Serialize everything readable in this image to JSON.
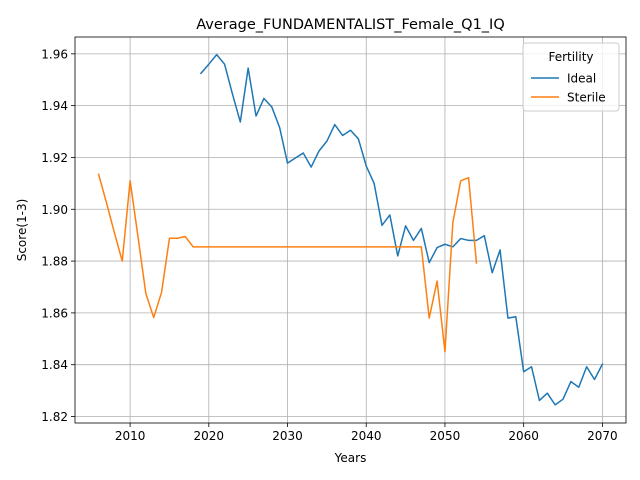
{
  "chart_data": {
    "type": "line",
    "title": "Average_FUNDAMENTALIST_Female_Q1_IQ",
    "xlabel": "Years",
    "ylabel": "Score(1-3)",
    "xlim": [
      2003,
      2073
    ],
    "ylim": [
      1.8175,
      1.9665
    ],
    "xticks": [
      2010,
      2020,
      2030,
      2040,
      2050,
      2060,
      2070
    ],
    "yticks": [
      1.82,
      1.84,
      1.86,
      1.88,
      1.9,
      1.92,
      1.94,
      1.96
    ],
    "ytick_labels": [
      "1.82",
      "1.84",
      "1.86",
      "1.88",
      "1.90",
      "1.92",
      "1.94",
      "1.96"
    ],
    "grid": true,
    "legend": {
      "title": "Fertility",
      "placement": "top-right"
    },
    "series": [
      {
        "name": "Ideal",
        "color": "#1f77b4",
        "x": [
          2019,
          2020,
          2021,
          2022,
          2023,
          2024,
          2025,
          2026,
          2027,
          2028,
          2029,
          2030,
          2031,
          2032,
          2033,
          2034,
          2035,
          2036,
          2037,
          2038,
          2039,
          2040,
          2041,
          2042,
          2043,
          2044,
          2045,
          2046,
          2047,
          2048,
          2049,
          2050,
          2051,
          2052,
          2053,
          2054,
          2055,
          2056,
          2057,
          2058,
          2059,
          2060,
          2061,
          2062,
          2063,
          2064,
          2065,
          2066,
          2067,
          2068,
          2069,
          2070
        ],
        "y": [
          1.9525,
          1.956,
          1.9597,
          1.956,
          1.9445,
          1.9337,
          1.9545,
          1.936,
          1.9428,
          1.9395,
          1.9315,
          1.9178,
          1.9198,
          1.9217,
          1.9163,
          1.9225,
          1.9263,
          1.9327,
          1.9285,
          1.9305,
          1.9272,
          1.9167,
          1.91,
          1.8938,
          1.8978,
          1.882,
          1.8936,
          1.888,
          1.8926,
          1.8794,
          1.8852,
          1.8865,
          1.8855,
          1.8887,
          1.888,
          1.888,
          1.8898,
          1.8755,
          1.8843,
          1.858,
          1.8585,
          1.8373,
          1.8392,
          1.8262,
          1.829,
          1.8245,
          1.8267,
          1.8335,
          1.8313,
          1.8392,
          1.8343,
          1.8402
        ]
      },
      {
        "name": "Sterile",
        "color": "#ff7f0e",
        "x": [
          2006,
          2007,
          2008,
          2009,
          2010,
          2011,
          2012,
          2013,
          2014,
          2015,
          2016,
          2017,
          2018,
          2019,
          2020,
          2021,
          2022,
          2023,
          2024,
          2025,
          2026,
          2027,
          2028,
          2029,
          2030,
          2031,
          2032,
          2033,
          2034,
          2035,
          2036,
          2037,
          2038,
          2039,
          2040,
          2041,
          2042,
          2043,
          2044,
          2045,
          2046,
          2047,
          2048,
          2049,
          2050,
          2051,
          2052,
          2053,
          2054
        ],
        "y": [
          1.9135,
          1.9025,
          1.891,
          1.88,
          1.911,
          1.8895,
          1.8675,
          1.8582,
          1.868,
          1.8888,
          1.8888,
          1.8895,
          1.8855,
          1.8855,
          1.8855,
          1.8855,
          1.8855,
          1.8855,
          1.8855,
          1.8855,
          1.8855,
          1.8855,
          1.8855,
          1.8855,
          1.8855,
          1.8855,
          1.8855,
          1.8855,
          1.8855,
          1.8855,
          1.8855,
          1.8855,
          1.8855,
          1.8855,
          1.8855,
          1.8855,
          1.8855,
          1.8855,
          1.8855,
          1.8855,
          1.8855,
          1.8855,
          1.858,
          1.8723,
          1.845,
          1.8948,
          1.911,
          1.9122,
          1.8793
        ]
      }
    ]
  }
}
